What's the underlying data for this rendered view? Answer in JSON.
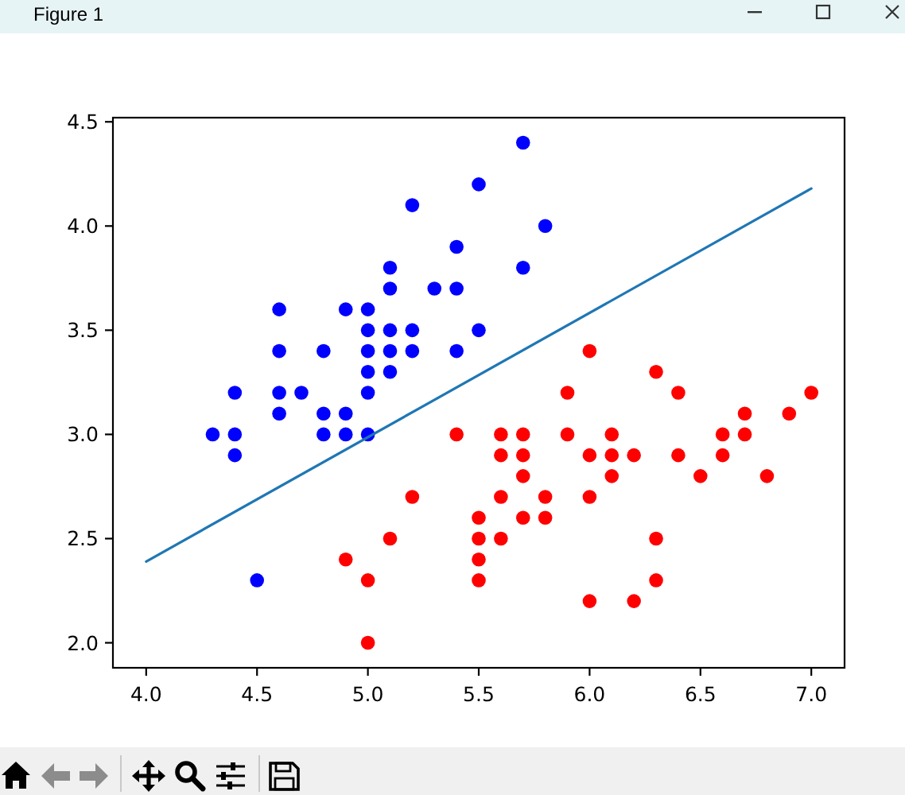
{
  "chart_data": {
    "type": "scatter",
    "annotations": [
      "Figure 1"
    ],
    "marker": "circle",
    "xlim": [
      3.85,
      7.15
    ],
    "ylim": [
      1.88,
      4.52
    ],
    "xticks": [
      {
        "value": 4.0,
        "label": "4.0"
      },
      {
        "value": 4.5,
        "label": "4.5"
      },
      {
        "value": 5.0,
        "label": "5.0"
      },
      {
        "value": 5.5,
        "label": "5.5"
      },
      {
        "value": 6.0,
        "label": "6.0"
      },
      {
        "value": 6.5,
        "label": "6.5"
      },
      {
        "value": 7.0,
        "label": "7.0"
      }
    ],
    "yticks": [
      {
        "value": 2.0,
        "label": "2.0"
      },
      {
        "value": 2.5,
        "label": "2.5"
      },
      {
        "value": 3.0,
        "label": "3.0"
      },
      {
        "value": 3.5,
        "label": "3.5"
      },
      {
        "value": 4.0,
        "label": "4.0"
      },
      {
        "value": 4.5,
        "label": "4.5"
      }
    ],
    "series": [
      {
        "color": "#0000ff",
        "x": [
          5.1,
          4.9,
          4.7,
          4.6,
          5.0,
          5.4,
          4.6,
          5.0,
          4.4,
          4.9,
          5.4,
          4.8,
          4.8,
          4.3,
          5.8,
          5.7,
          5.7,
          5.1,
          5.4,
          5.1,
          4.6,
          5.1,
          5.0,
          5.2,
          5.2,
          4.8,
          5.2,
          5.5,
          5.0,
          5.5,
          4.9,
          4.4,
          5.1,
          5.0,
          4.5,
          4.4,
          5.3,
          5.0,
          4.6
        ],
        "values": [
          3.5,
          3.0,
          3.2,
          3.1,
          3.6,
          3.9,
          3.4,
          3.4,
          2.9,
          3.1,
          3.7,
          3.4,
          3.0,
          3.0,
          4.0,
          4.4,
          3.8,
          3.8,
          3.4,
          3.7,
          3.6,
          3.3,
          3.0,
          3.5,
          3.4,
          3.1,
          4.1,
          4.2,
          3.2,
          3.5,
          3.6,
          3.0,
          3.4,
          3.5,
          2.3,
          3.2,
          3.7,
          3.3,
          3.2
        ]
      },
      {
        "color": "#ff0000",
        "x": [
          7.0,
          6.4,
          6.9,
          5.5,
          6.5,
          5.7,
          6.3,
          4.9,
          6.6,
          5.2,
          5.0,
          5.9,
          6.0,
          6.1,
          5.6,
          6.7,
          5.6,
          5.8,
          6.2,
          5.6,
          5.9,
          6.1,
          6.3,
          6.4,
          6.6,
          6.8,
          6.7,
          6.0,
          5.7,
          5.5,
          6.0,
          5.4,
          6.0,
          6.3,
          5.5,
          5.5,
          6.1,
          5.8,
          5.0,
          5.6,
          5.7,
          5.7,
          6.2,
          5.1
        ],
        "values": [
          3.2,
          3.2,
          3.1,
          2.3,
          2.8,
          2.8,
          3.3,
          2.4,
          2.9,
          2.7,
          2.0,
          3.0,
          2.2,
          2.9,
          2.9,
          3.1,
          3.0,
          2.7,
          2.2,
          2.5,
          3.2,
          2.8,
          2.5,
          2.9,
          3.0,
          2.8,
          3.0,
          2.9,
          2.6,
          2.4,
          2.7,
          3.0,
          3.4,
          2.3,
          2.5,
          2.6,
          3.0,
          2.6,
          2.3,
          2.7,
          3.0,
          2.9,
          2.9,
          2.5
        ]
      },
      {
        "type": "line",
        "marker": "none",
        "color": "#1f77b4",
        "x": [
          4.0,
          7.0
        ],
        "values": [
          2.39,
          4.18
        ]
      }
    ]
  }
}
